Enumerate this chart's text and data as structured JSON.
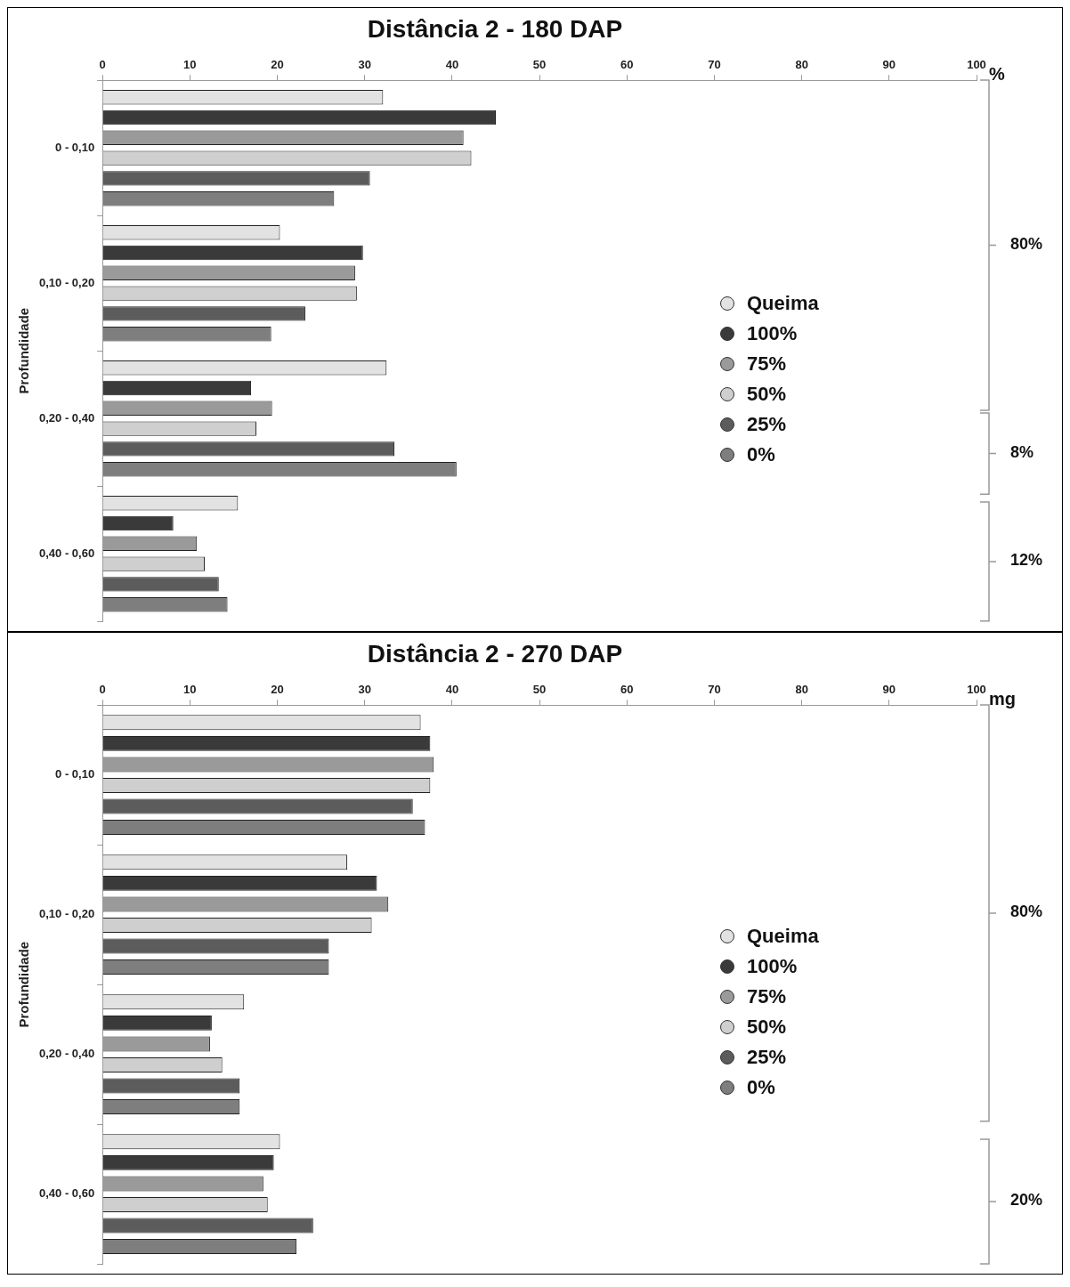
{
  "chart_data": [
    {
      "type": "bar",
      "orientation": "horizontal",
      "title": "Distância 2 - 180 DAP",
      "xlabel": "%",
      "ylabel": "Profundidade",
      "categories": [
        "0 - 0,10",
        "0,10 - 0,20",
        "0,20 - 0,40",
        "0,40 - 0,60"
      ],
      "xlim": [
        0,
        100
      ],
      "xticks": [
        0,
        10,
        20,
        30,
        40,
        50,
        60,
        70,
        80,
        90,
        100
      ],
      "grid": false,
      "legend": "right",
      "annotations": [
        "80%",
        "8%",
        "12%"
      ],
      "series": [
        {
          "name": "Queima",
          "color": "#e2e2e2",
          "values": [
            32.1,
            20.3,
            32.5,
            15.5
          ]
        },
        {
          "name": "100%",
          "color": "#3a3a3a",
          "values": [
            45.0,
            29.8,
            17.0,
            8.1
          ]
        },
        {
          "name": "75%",
          "color": "#9a9a9a",
          "values": [
            41.3,
            28.9,
            19.4,
            10.8
          ]
        },
        {
          "name": "50%",
          "color": "#cfcfcf",
          "values": [
            42.2,
            29.1,
            17.6,
            11.7
          ]
        },
        {
          "name": "25%",
          "color": "#5c5c5c",
          "values": [
            30.6,
            23.2,
            33.4,
            13.3
          ]
        },
        {
          "name": "0%",
          "color": "#7e7e7e",
          "values": [
            26.5,
            19.3,
            40.5,
            14.3
          ]
        }
      ]
    },
    {
      "type": "bar",
      "orientation": "horizontal",
      "title": "Distância 2 - 270 DAP",
      "xlabel": "mg",
      "ylabel": "Profundidade",
      "categories": [
        "0 - 0,10",
        "0,10 - 0,20",
        "0,20 - 0,40",
        "0,40 - 0,60"
      ],
      "xlim": [
        0,
        100
      ],
      "xticks": [
        0,
        10,
        20,
        30,
        40,
        50,
        60,
        70,
        80,
        90,
        100
      ],
      "grid": false,
      "legend": "right",
      "annotations": [
        "80%",
        "20%"
      ],
      "series": [
        {
          "name": "Queima",
          "color": "#e2e2e2",
          "values": [
            36.4,
            28.0,
            16.2,
            20.3
          ]
        },
        {
          "name": "100%",
          "color": "#3a3a3a",
          "values": [
            37.5,
            31.4,
            12.5,
            19.6
          ]
        },
        {
          "name": "75%",
          "color": "#9a9a9a",
          "values": [
            37.9,
            32.7,
            12.3,
            18.4
          ]
        },
        {
          "name": "50%",
          "color": "#cfcfcf",
          "values": [
            37.5,
            30.8,
            13.7,
            18.9
          ]
        },
        {
          "name": "25%",
          "color": "#5c5c5c",
          "values": [
            35.5,
            25.9,
            15.7,
            24.1
          ]
        },
        {
          "name": "0%",
          "color": "#7e7e7e",
          "values": [
            36.9,
            25.9,
            15.7,
            22.2
          ]
        }
      ]
    }
  ]
}
